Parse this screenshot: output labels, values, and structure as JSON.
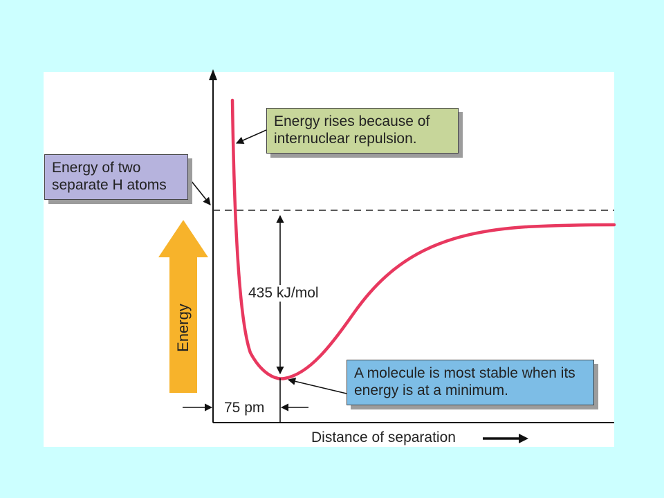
{
  "slide": {
    "background_color": "#ccffff",
    "panel_color": "#ffffff"
  },
  "diagram": {
    "curve_color": "#e8385f",
    "energy_arrow_color": "#f7b32b",
    "callouts": {
      "repulsion": {
        "text": "Energy rises because of internuclear repulsion.",
        "color": "#c7d69a"
      },
      "separate_atoms": {
        "text": "Energy of two separate H atoms",
        "color": "#b6b3dd"
      },
      "minimum": {
        "text": "A molecule is most stable when its energy is at a minimum.",
        "color": "#7dbde6"
      }
    },
    "labels": {
      "energy_difference": "435 kJ/mol",
      "bond_length": "75 pm",
      "x_axis": "Distance of separation",
      "energy_arrow": "Energy"
    }
  }
}
